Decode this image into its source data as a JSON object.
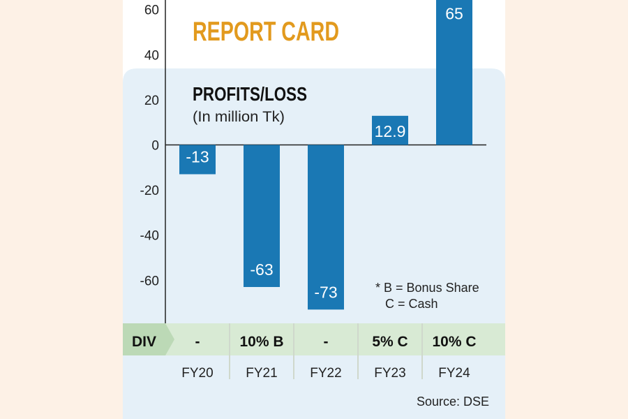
{
  "chart_data": {
    "type": "bar",
    "title": "REPORT CARD",
    "subtitle": "PROFITS/LOSS",
    "unit": "(In million Tk)",
    "categories": [
      "FY20",
      "FY21",
      "FY22",
      "FY23",
      "FY24"
    ],
    "values": [
      -13,
      -63,
      -73,
      12.9,
      65
    ],
    "value_labels": [
      "-13",
      "-63",
      "-73",
      "12.9",
      "65"
    ],
    "yticks": [
      "60",
      "40",
      "20",
      "0",
      "-20",
      "-40",
      "-60"
    ],
    "ylim": [
      -73,
      65
    ],
    "grid": false,
    "div_label": "DIV",
    "dividends": [
      "-",
      "10% B",
      "-",
      "5% C",
      "10% C"
    ],
    "notes": [
      "* B = Bonus Share",
      "C = Cash"
    ],
    "source": "Source: DSE"
  },
  "colors": {
    "background": "#fdf1e6",
    "card": "#ffffff",
    "panel": "#e5f0f8",
    "bar": "#1a78b4",
    "bar_label": "#ffffff",
    "title": "#e29a1e",
    "axis": "#222222",
    "div_band": "#d8ead4",
    "div_label_bg": "#bcd9b6"
  }
}
